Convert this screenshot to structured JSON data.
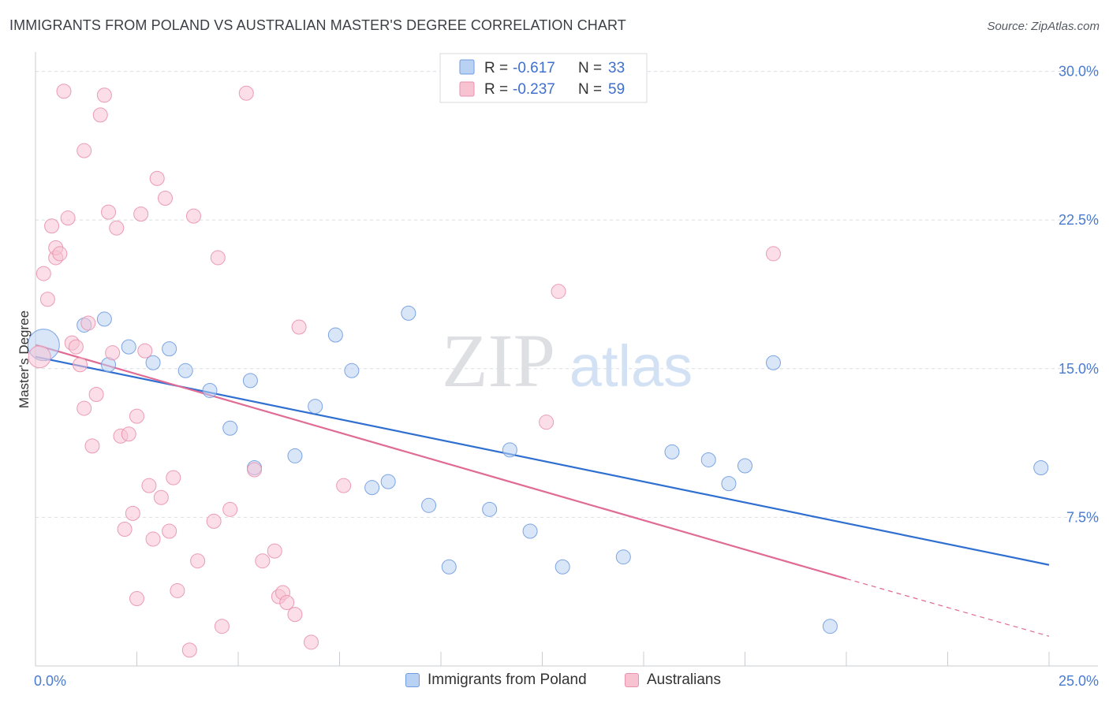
{
  "title": "IMMIGRANTS FROM POLAND VS AUSTRALIAN MASTER'S DEGREE CORRELATION CHART",
  "source": "Source: ZipAtlas.com",
  "watermark": {
    "zip": "ZIP",
    "atlas": "atlas"
  },
  "colors": {
    "blue_fill": "#b9d1f3",
    "blue_stroke": "#6f9be0",
    "blue_line": "#2f6fd0",
    "pink_fill": "#f7c3d3",
    "pink_stroke": "#e992ae",
    "pink_line": "#e06b95",
    "grid": "#d9dde3",
    "tick_text": "#4a7bd0"
  },
  "legend_box": {
    "rows": [
      {
        "r_label": "R =",
        "r_value": "-0.617",
        "n_label": "N =",
        "n_value": "33"
      },
      {
        "r_label": "R =",
        "r_value": "-0.237",
        "n_label": "N =",
        "n_value": "59"
      }
    ]
  },
  "bottom_legend": [
    {
      "label": "Immigrants from Poland"
    },
    {
      "label": "Australians"
    }
  ],
  "chart_data": {
    "type": "scatter",
    "title": "IMMIGRANTS FROM POLAND VS AUSTRALIAN MASTER'S DEGREE CORRELATION CHART",
    "xlabel": "",
    "ylabel": "Master's Degree",
    "xlim": [
      0,
      25
    ],
    "ylim": [
      0,
      30.5
    ],
    "x_tick_labels": [
      "0.0%",
      "25.0%"
    ],
    "y_ticks": [
      7.5,
      15.0,
      22.5,
      30.0
    ],
    "y_tick_labels": [
      "7.5%",
      "15.0%",
      "22.5%",
      "30.0%"
    ],
    "grid": "horizontal dashed",
    "legend_placement": "top-center",
    "series": [
      {
        "name": "Immigrants from Poland",
        "color": "#b9d1f3",
        "r": -0.617,
        "n": 33,
        "trend": {
          "x": [
            0,
            25
          ],
          "y": [
            15.6,
            5.1
          ]
        },
        "points": [
          [
            0.2,
            16.2,
            20
          ],
          [
            1.2,
            17.2,
            9
          ],
          [
            1.7,
            17.5,
            9
          ],
          [
            1.8,
            15.2,
            9
          ],
          [
            2.3,
            16.1,
            9
          ],
          [
            2.9,
            15.3,
            9
          ],
          [
            3.3,
            16.0,
            9
          ],
          [
            3.7,
            14.9,
            9
          ],
          [
            4.3,
            13.9,
            9
          ],
          [
            4.8,
            12.0,
            9
          ],
          [
            5.3,
            14.4,
            9
          ],
          [
            5.4,
            10.0,
            9
          ],
          [
            6.4,
            10.6,
            9
          ],
          [
            6.9,
            13.1,
            9
          ],
          [
            7.4,
            16.7,
            9
          ],
          [
            7.8,
            14.9,
            9
          ],
          [
            8.3,
            9.0,
            9
          ],
          [
            8.7,
            9.3,
            9
          ],
          [
            9.2,
            17.8,
            9
          ],
          [
            9.7,
            8.1,
            9
          ],
          [
            10.2,
            5.0,
            9
          ],
          [
            11.2,
            7.9,
            9
          ],
          [
            11.7,
            10.9,
            9
          ],
          [
            12.2,
            6.8,
            9
          ],
          [
            13.0,
            5.0,
            9
          ],
          [
            14.5,
            5.5,
            9
          ],
          [
            15.7,
            10.8,
            9
          ],
          [
            16.6,
            10.4,
            9
          ],
          [
            17.1,
            9.2,
            9
          ],
          [
            17.5,
            10.1,
            9
          ],
          [
            18.2,
            15.3,
            9
          ],
          [
            19.6,
            2.0,
            9
          ],
          [
            24.8,
            10.0,
            9
          ]
        ]
      },
      {
        "name": "Australians",
        "color": "#f7c3d3",
        "r": -0.237,
        "n": 59,
        "trend": {
          "x": [
            0,
            20
          ],
          "y": [
            16.2,
            4.4
          ]
        },
        "trend_dashed": {
          "x": [
            20,
            25
          ],
          "y": [
            4.4,
            1.5
          ]
        },
        "points": [
          [
            0.1,
            15.6,
            14
          ],
          [
            0.2,
            19.8,
            9
          ],
          [
            0.3,
            18.5,
            9
          ],
          [
            0.4,
            22.2,
            9
          ],
          [
            0.5,
            20.6,
            9
          ],
          [
            0.5,
            21.1,
            9
          ],
          [
            0.6,
            20.8,
            9
          ],
          [
            0.7,
            29.0,
            9
          ],
          [
            0.8,
            22.6,
            9
          ],
          [
            0.9,
            16.3,
            9
          ],
          [
            1.0,
            16.1,
            9
          ],
          [
            1.1,
            15.2,
            9
          ],
          [
            1.2,
            13.0,
            9
          ],
          [
            1.2,
            26.0,
            9
          ],
          [
            1.3,
            17.3,
            9
          ],
          [
            1.4,
            11.1,
            9
          ],
          [
            1.5,
            13.7,
            9
          ],
          [
            1.6,
            27.8,
            9
          ],
          [
            1.7,
            28.8,
            9
          ],
          [
            1.8,
            22.9,
            9
          ],
          [
            1.9,
            15.8,
            9
          ],
          [
            2.0,
            22.1,
            9
          ],
          [
            2.1,
            11.6,
            9
          ],
          [
            2.2,
            6.9,
            9
          ],
          [
            2.3,
            11.7,
            9
          ],
          [
            2.4,
            7.7,
            9
          ],
          [
            2.5,
            12.6,
            9
          ],
          [
            2.5,
            3.4,
            9
          ],
          [
            2.6,
            22.8,
            9
          ],
          [
            2.7,
            15.9,
            9
          ],
          [
            2.8,
            9.1,
            9
          ],
          [
            2.9,
            6.4,
            9
          ],
          [
            3.0,
            24.6,
            9
          ],
          [
            3.1,
            8.5,
            9
          ],
          [
            3.2,
            23.6,
            9
          ],
          [
            3.3,
            6.8,
            9
          ],
          [
            3.4,
            9.5,
            9
          ],
          [
            3.5,
            3.8,
            9
          ],
          [
            3.8,
            0.8,
            9
          ],
          [
            3.9,
            22.7,
            9
          ],
          [
            4.0,
            5.3,
            9
          ],
          [
            4.4,
            7.3,
            9
          ],
          [
            4.5,
            20.6,
            9
          ],
          [
            4.6,
            2.0,
            9
          ],
          [
            4.8,
            7.9,
            9
          ],
          [
            5.2,
            28.9,
            9
          ],
          [
            5.4,
            9.9,
            9
          ],
          [
            5.6,
            5.3,
            9
          ],
          [
            5.9,
            5.8,
            9
          ],
          [
            6.0,
            3.5,
            9
          ],
          [
            6.1,
            3.7,
            9
          ],
          [
            6.2,
            3.2,
            9
          ],
          [
            6.4,
            2.6,
            9
          ],
          [
            6.5,
            17.1,
            9
          ],
          [
            6.8,
            1.2,
            9
          ],
          [
            7.6,
            9.1,
            9
          ],
          [
            12.6,
            12.3,
            9
          ],
          [
            12.9,
            18.9,
            9
          ],
          [
            18.2,
            20.8,
            9
          ]
        ]
      }
    ]
  }
}
